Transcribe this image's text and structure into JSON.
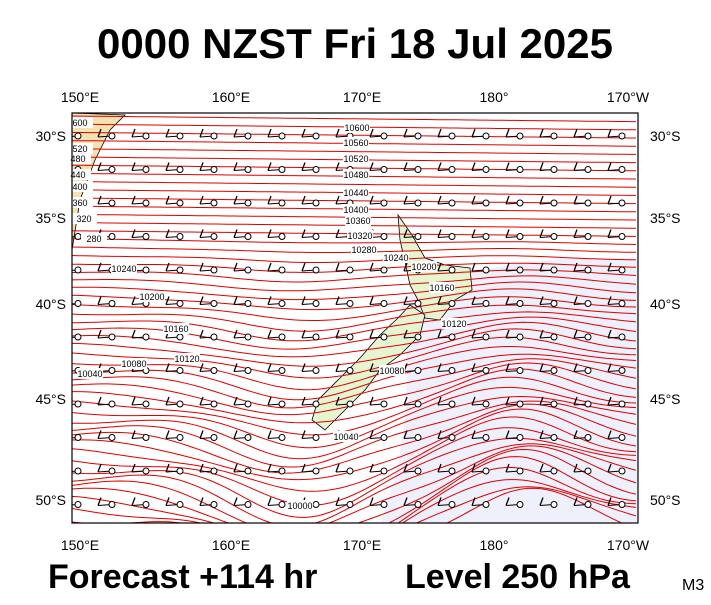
{
  "header": {
    "title": "0000 NZST Fri 18 Jul 2025"
  },
  "map": {
    "top_labels": [
      "150°E",
      "160°E",
      "170°E",
      "180°",
      "170°W"
    ],
    "bottom_labels": [
      "150°E",
      "160°E",
      "170°E",
      "180°",
      "170°W"
    ],
    "left_labels": [
      "30°S",
      "35°S",
      "40°S",
      "45°S",
      "50°S"
    ],
    "right_labels": [
      "30°S",
      "35°S",
      "40°S",
      "45°S",
      "50°S"
    ],
    "contour_labels": [
      "10600",
      "10560",
      "10520",
      "10480",
      "10440",
      "10400",
      "10360",
      "10320",
      "10280",
      "10240",
      "10200",
      "10160",
      "10120",
      "10240",
      "10200",
      "10160",
      "10120",
      "10080",
      "10040",
      "10080",
      "10040",
      "10000",
      "600",
      "520",
      "480",
      "440",
      "400",
      "360",
      "320",
      "280"
    ]
  },
  "footer": {
    "forecast": "Forecast +114 hr",
    "level": "Level 250 hPa",
    "code": "M3"
  }
}
